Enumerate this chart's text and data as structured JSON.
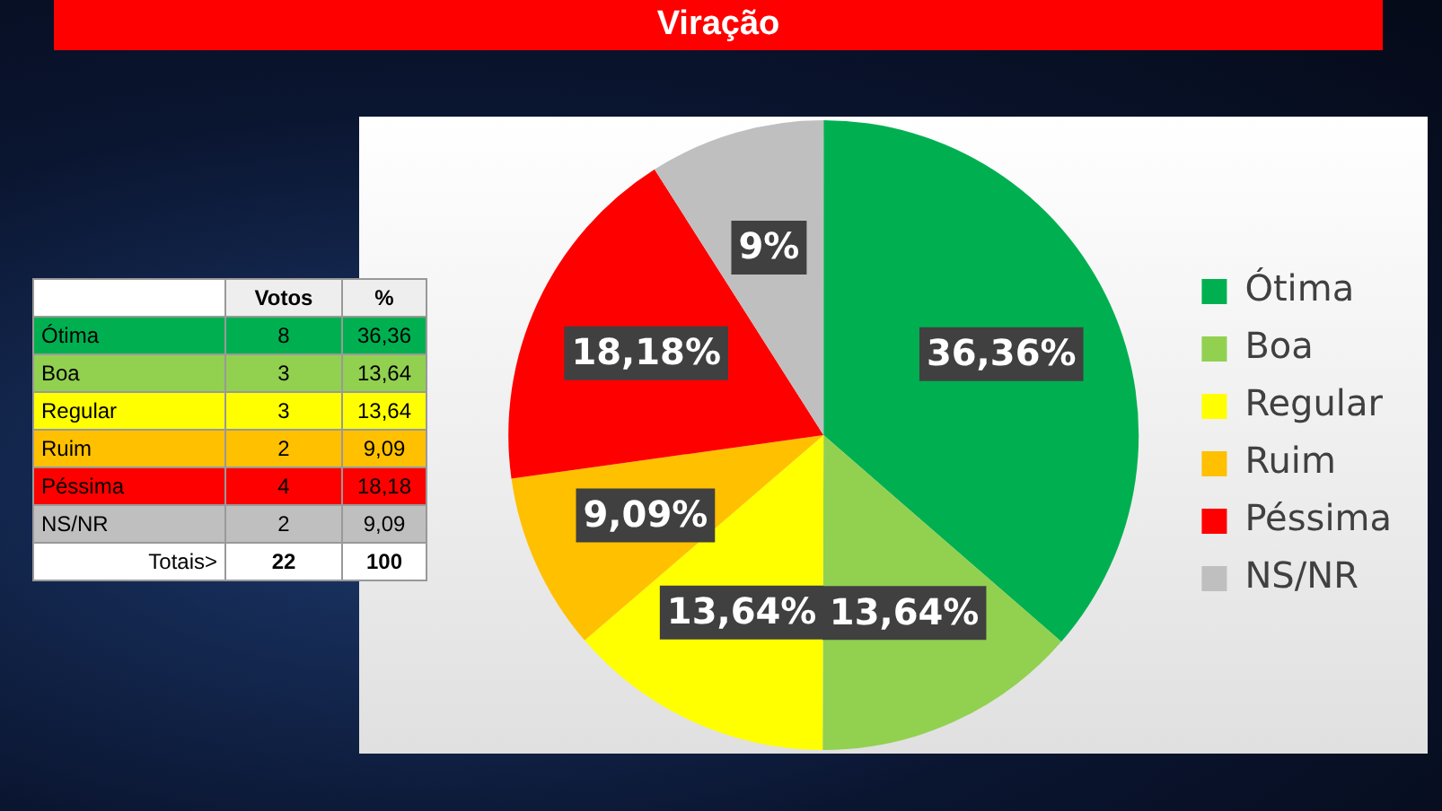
{
  "chart_data": [
    {
      "type": "other",
      "categories": [
        "Ótima",
        "Boa",
        "Regular",
        "Ruim",
        "Péssima",
        "NS/NR"
      ],
      "colors": [
        "#00b050",
        "#92d050",
        "#ffff00",
        "#ffc000",
        "#ff0000",
        "#bfbfbf"
      ],
      "series": [
        {
          "name": "Votos",
          "values": [
            8,
            3,
            3,
            2,
            4,
            2
          ],
          "colors": [
            "#00b050",
            "#92d050",
            "#ffff00",
            "#ffc000",
            "#ff0000",
            "#bfbfbf"
          ]
        },
        {
          "name": "%",
          "values": [
            36.36,
            13.64,
            13.64,
            9.09,
            18.18,
            9.09
          ],
          "value_labels": [
            "36,36",
            "13,64",
            "13,64",
            "9,09",
            "18,18",
            "9,09"
          ],
          "colors": [
            "#00b050",
            "#92d050",
            "#ffff00",
            "#ffc000",
            "#ff0000",
            "#bfbfbf"
          ]
        }
      ],
      "data_labels": true,
      "totals": [
        "22",
        "100"
      ],
      "annotations": [
        "Totais>"
      ]
    },
    {
      "type": "pie",
      "title": "Viração",
      "categories": [
        "Ótima",
        "Boa",
        "Regular",
        "Ruim",
        "Péssima",
        "NS/NR"
      ],
      "values": [
        36.36,
        13.64,
        13.64,
        9.09,
        18.18,
        9
      ],
      "colors": [
        "#00b050",
        "#92d050",
        "#ffff00",
        "#ffc000",
        "#ff0000",
        "#bfbfbf"
      ],
      "value_labels": [
        "36,36%",
        "13,64%",
        "13,64%",
        "9,09%",
        "18,18%",
        "9%"
      ],
      "legend": "right"
    }
  ]
}
